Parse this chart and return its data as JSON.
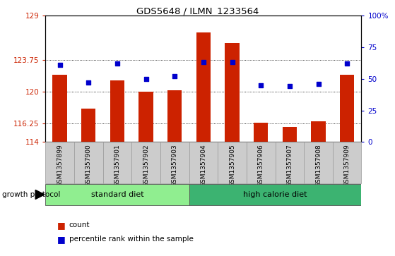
{
  "title": "GDS5648 / ILMN_1233564",
  "samples": [
    "GSM1357899",
    "GSM1357900",
    "GSM1357901",
    "GSM1357902",
    "GSM1357903",
    "GSM1357904",
    "GSM1357905",
    "GSM1357906",
    "GSM1357907",
    "GSM1357908",
    "GSM1357909"
  ],
  "counts": [
    122.0,
    118.0,
    121.3,
    120.0,
    120.1,
    127.0,
    125.7,
    116.3,
    115.8,
    116.5,
    122.0
  ],
  "percentiles": [
    61,
    47,
    62,
    50,
    52,
    63,
    63,
    45,
    44,
    46,
    62
  ],
  "y_min": 114,
  "y_max": 129,
  "y_ticks": [
    114,
    116.25,
    120,
    123.75,
    129
  ],
  "y2_ticks": [
    0,
    25,
    50,
    75,
    100
  ],
  "bar_color": "#cc2200",
  "dot_color": "#0000cc",
  "grid_color": "#000000",
  "tick_color_left": "#cc2200",
  "tick_color_right": "#0000cc",
  "groups": [
    {
      "label": "standard diet",
      "start": 0,
      "end": 4,
      "color": "#90ee90"
    },
    {
      "label": "high calorie diet",
      "start": 5,
      "end": 10,
      "color": "#3cb371"
    }
  ],
  "protocol_label": "growth protocol",
  "legend_count": "count",
  "legend_pct": "percentile rank within the sample",
  "group_bar_color_light": "#90ee90",
  "group_bar_color_dark": "#3cb371",
  "gray_box_color": "#cccccc",
  "gray_box_edge": "#999999"
}
